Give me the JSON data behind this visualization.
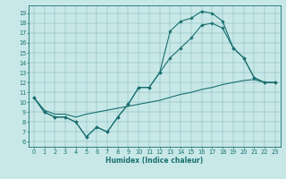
{
  "title": "",
  "xlabel": "Humidex (Indice chaleur)",
  "bg_color": "#c8e8e8",
  "line_color": "#1a7070",
  "xlim": [
    -0.5,
    23.5
  ],
  "ylim": [
    5.5,
    19.8
  ],
  "yticks": [
    6,
    7,
    8,
    9,
    10,
    11,
    12,
    13,
    14,
    15,
    16,
    17,
    18,
    19
  ],
  "xticks": [
    0,
    1,
    2,
    3,
    4,
    5,
    6,
    7,
    8,
    9,
    10,
    11,
    12,
    13,
    14,
    15,
    16,
    17,
    18,
    19,
    20,
    21,
    22,
    23
  ],
  "line1_x": [
    0,
    1,
    2,
    3,
    4,
    5,
    6,
    7,
    8,
    9,
    10,
    11,
    12,
    13,
    14,
    15,
    16,
    17,
    18,
    19,
    20,
    21,
    22,
    23
  ],
  "line1_y": [
    10.5,
    9.0,
    8.5,
    8.5,
    8.0,
    6.5,
    7.5,
    7.0,
    8.5,
    9.8,
    11.5,
    11.5,
    13.0,
    17.2,
    18.2,
    18.5,
    19.2,
    19.0,
    18.2,
    15.5,
    14.5,
    12.5,
    12.0,
    12.0
  ],
  "line2_x": [
    0,
    1,
    2,
    3,
    4,
    5,
    6,
    7,
    8,
    9,
    10,
    11,
    12,
    13,
    14,
    15,
    16,
    17,
    18,
    19,
    20,
    21,
    22,
    23
  ],
  "line2_y": [
    10.5,
    9.2,
    8.8,
    8.8,
    8.5,
    8.8,
    9.0,
    9.2,
    9.4,
    9.6,
    9.8,
    10.0,
    10.2,
    10.5,
    10.8,
    11.0,
    11.3,
    11.5,
    11.8,
    12.0,
    12.2,
    12.3,
    12.0,
    12.0
  ],
  "line3_x": [
    0,
    1,
    2,
    3,
    4,
    5,
    6,
    7,
    8,
    9,
    10,
    11,
    12,
    13,
    14,
    15,
    16,
    17,
    18,
    19,
    20,
    21,
    22,
    23
  ],
  "line3_y": [
    10.5,
    9.0,
    8.5,
    8.5,
    8.0,
    6.5,
    7.5,
    7.0,
    8.5,
    9.8,
    11.5,
    11.5,
    13.0,
    14.5,
    15.5,
    16.5,
    17.8,
    18.0,
    17.5,
    15.5,
    14.5,
    12.5,
    12.0,
    12.0
  ],
  "xlabel_fontsize": 5.5,
  "tick_fontsize": 4.8
}
